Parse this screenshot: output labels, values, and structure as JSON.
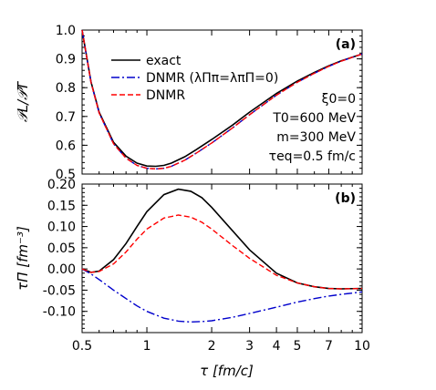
{
  "chart_data": [
    {
      "type": "line",
      "panel_label": "(a)",
      "ylabel": "𝒫L/𝒫T",
      "xscale": "log",
      "xlim": [
        0.5,
        10
      ],
      "ylim": [
        0.5,
        1.0
      ],
      "yticks": [
        "0.5",
        "0.6",
        "0.7",
        "0.8",
        "0.9",
        "1.0"
      ],
      "legend_position": "top-left",
      "legend": [
        {
          "label": "exact",
          "color": "#000000",
          "style": "solid"
        },
        {
          "label": "DNMR (λΠπ=λπΠ=0)",
          "color": "#0000cc",
          "style": "dashdot"
        },
        {
          "label": "DNMR",
          "color": "#ff0000",
          "style": "dashed"
        }
      ],
      "annotations": [
        "ξ0=0",
        "T0=600 MeV",
        "m=300 MeV",
        "τeq=0.5 fm/c"
      ],
      "series": [
        {
          "name": "exact",
          "color": "#000000",
          "style": "solid",
          "x": [
            0.5,
            0.55,
            0.6,
            0.7,
            0.8,
            0.9,
            1.0,
            1.1,
            1.2,
            1.3,
            1.5,
            1.7,
            2.0,
            2.5,
            3.0,
            4.0,
            5.0,
            6.0,
            7.0,
            8.0,
            10.0
          ],
          "y": [
            1.0,
            0.82,
            0.715,
            0.61,
            0.562,
            0.538,
            0.528,
            0.527,
            0.53,
            0.538,
            0.56,
            0.585,
            0.62,
            0.67,
            0.715,
            0.78,
            0.823,
            0.853,
            0.876,
            0.893,
            0.917
          ]
        },
        {
          "name": "DNMR (λΠπ=λπΠ=0)",
          "color": "#0000cc",
          "style": "dashdot",
          "x": [
            0.5,
            0.55,
            0.6,
            0.7,
            0.8,
            0.9,
            1.0,
            1.1,
            1.2,
            1.3,
            1.5,
            1.7,
            2.0,
            2.5,
            3.0,
            4.0,
            5.0,
            6.0,
            7.0,
            8.0,
            10.0
          ],
          "y": [
            1.0,
            0.818,
            0.712,
            0.605,
            0.555,
            0.53,
            0.52,
            0.518,
            0.52,
            0.527,
            0.548,
            0.573,
            0.608,
            0.66,
            0.706,
            0.774,
            0.819,
            0.85,
            0.874,
            0.892,
            0.917
          ]
        },
        {
          "name": "DNMR",
          "color": "#ff0000",
          "style": "dashed",
          "x": [
            0.5,
            0.55,
            0.6,
            0.7,
            0.8,
            0.9,
            1.0,
            1.1,
            1.2,
            1.3,
            1.5,
            1.7,
            2.0,
            2.5,
            3.0,
            4.0,
            5.0,
            6.0,
            7.0,
            8.0,
            10.0
          ],
          "y": [
            1.0,
            0.818,
            0.712,
            0.605,
            0.555,
            0.53,
            0.52,
            0.518,
            0.52,
            0.527,
            0.548,
            0.573,
            0.608,
            0.66,
            0.706,
            0.774,
            0.819,
            0.85,
            0.874,
            0.892,
            0.917
          ]
        }
      ]
    },
    {
      "type": "line",
      "panel_label": "(b)",
      "xlabel": "τ [fm/c]",
      "ylabel": "τΠ [fm⁻³]",
      "xscale": "log",
      "xlim": [
        0.5,
        10
      ],
      "ylim": [
        -0.15,
        0.2
      ],
      "xticks": [
        "0.5",
        "1",
        "2",
        "3",
        "4",
        "5",
        "7",
        "10"
      ],
      "yticks": [
        "-0.10",
        "-0.05",
        "0.00",
        "0.05",
        "0.10",
        "0.15",
        "0.20"
      ],
      "series": [
        {
          "name": "exact",
          "color": "#000000",
          "style": "solid",
          "x": [
            0.5,
            0.55,
            0.6,
            0.7,
            0.8,
            0.9,
            1.0,
            1.2,
            1.4,
            1.6,
            1.8,
            2.0,
            2.5,
            3.0,
            4.0,
            5.0,
            6.0,
            7.0,
            8.0,
            10.0
          ],
          "y": [
            0.0,
            -0.008,
            -0.005,
            0.022,
            0.06,
            0.1,
            0.135,
            0.175,
            0.188,
            0.183,
            0.168,
            0.145,
            0.09,
            0.045,
            -0.01,
            -0.033,
            -0.042,
            -0.046,
            -0.047,
            -0.046
          ]
        },
        {
          "name": "DNMR (λΠπ=λπΠ=0)",
          "color": "#0000cc",
          "style": "dashdot",
          "x": [
            0.5,
            0.55,
            0.6,
            0.7,
            0.8,
            0.9,
            1.0,
            1.2,
            1.4,
            1.6,
            1.8,
            2.0,
            2.5,
            3.0,
            4.0,
            5.0,
            6.0,
            7.0,
            8.0,
            10.0
          ],
          "y": [
            0.0,
            -0.012,
            -0.025,
            -0.05,
            -0.07,
            -0.087,
            -0.1,
            -0.116,
            -0.123,
            -0.125,
            -0.124,
            -0.122,
            -0.114,
            -0.105,
            -0.09,
            -0.078,
            -0.07,
            -0.064,
            -0.06,
            -0.054
          ]
        },
        {
          "name": "DNMR",
          "color": "#ff0000",
          "style": "dashed",
          "x": [
            0.5,
            0.55,
            0.6,
            0.7,
            0.8,
            0.9,
            1.0,
            1.2,
            1.4,
            1.6,
            1.8,
            2.0,
            2.5,
            3.0,
            4.0,
            5.0,
            6.0,
            7.0,
            8.0,
            10.0
          ],
          "y": [
            0.0,
            -0.008,
            -0.006,
            0.012,
            0.04,
            0.07,
            0.094,
            0.12,
            0.127,
            0.122,
            0.11,
            0.094,
            0.055,
            0.025,
            -0.015,
            -0.033,
            -0.042,
            -0.046,
            -0.047,
            -0.046
          ]
        }
      ]
    }
  ]
}
